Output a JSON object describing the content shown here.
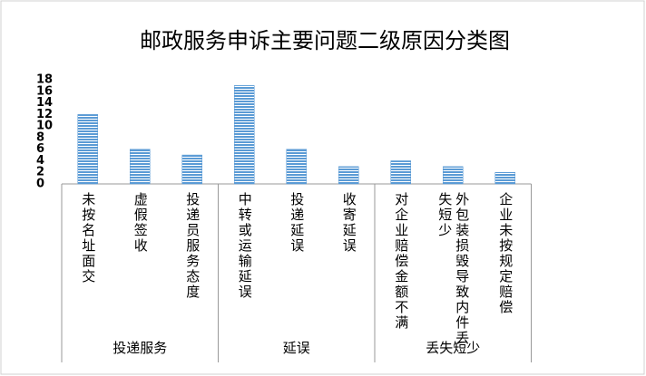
{
  "chart_data": {
    "type": "bar",
    "title": "邮政服务申诉主要问题二级原因分类图",
    "groups": [
      {
        "name": "投递服务",
        "categories": [
          "未按名址面交",
          "虚假签收",
          "投递员服务态度"
        ],
        "values": [
          12,
          6,
          5
        ]
      },
      {
        "name": "延误",
        "categories": [
          "中转或运输延误",
          "投递延误",
          "收寄延误"
        ],
        "values": [
          17,
          6,
          3
        ]
      },
      {
        "name": "丢失短少",
        "categories": [
          "对企业赔偿金额不满",
          "外包装损毁导致内件丢失短少",
          "企业未按规定赔偿"
        ],
        "values": [
          4,
          3,
          2
        ]
      }
    ],
    "color": "#5b9bd5",
    "ylim": [
      0,
      18
    ],
    "yticks": [
      0,
      2,
      4,
      6,
      8,
      10,
      12,
      14,
      16,
      18
    ],
    "grid": false
  }
}
